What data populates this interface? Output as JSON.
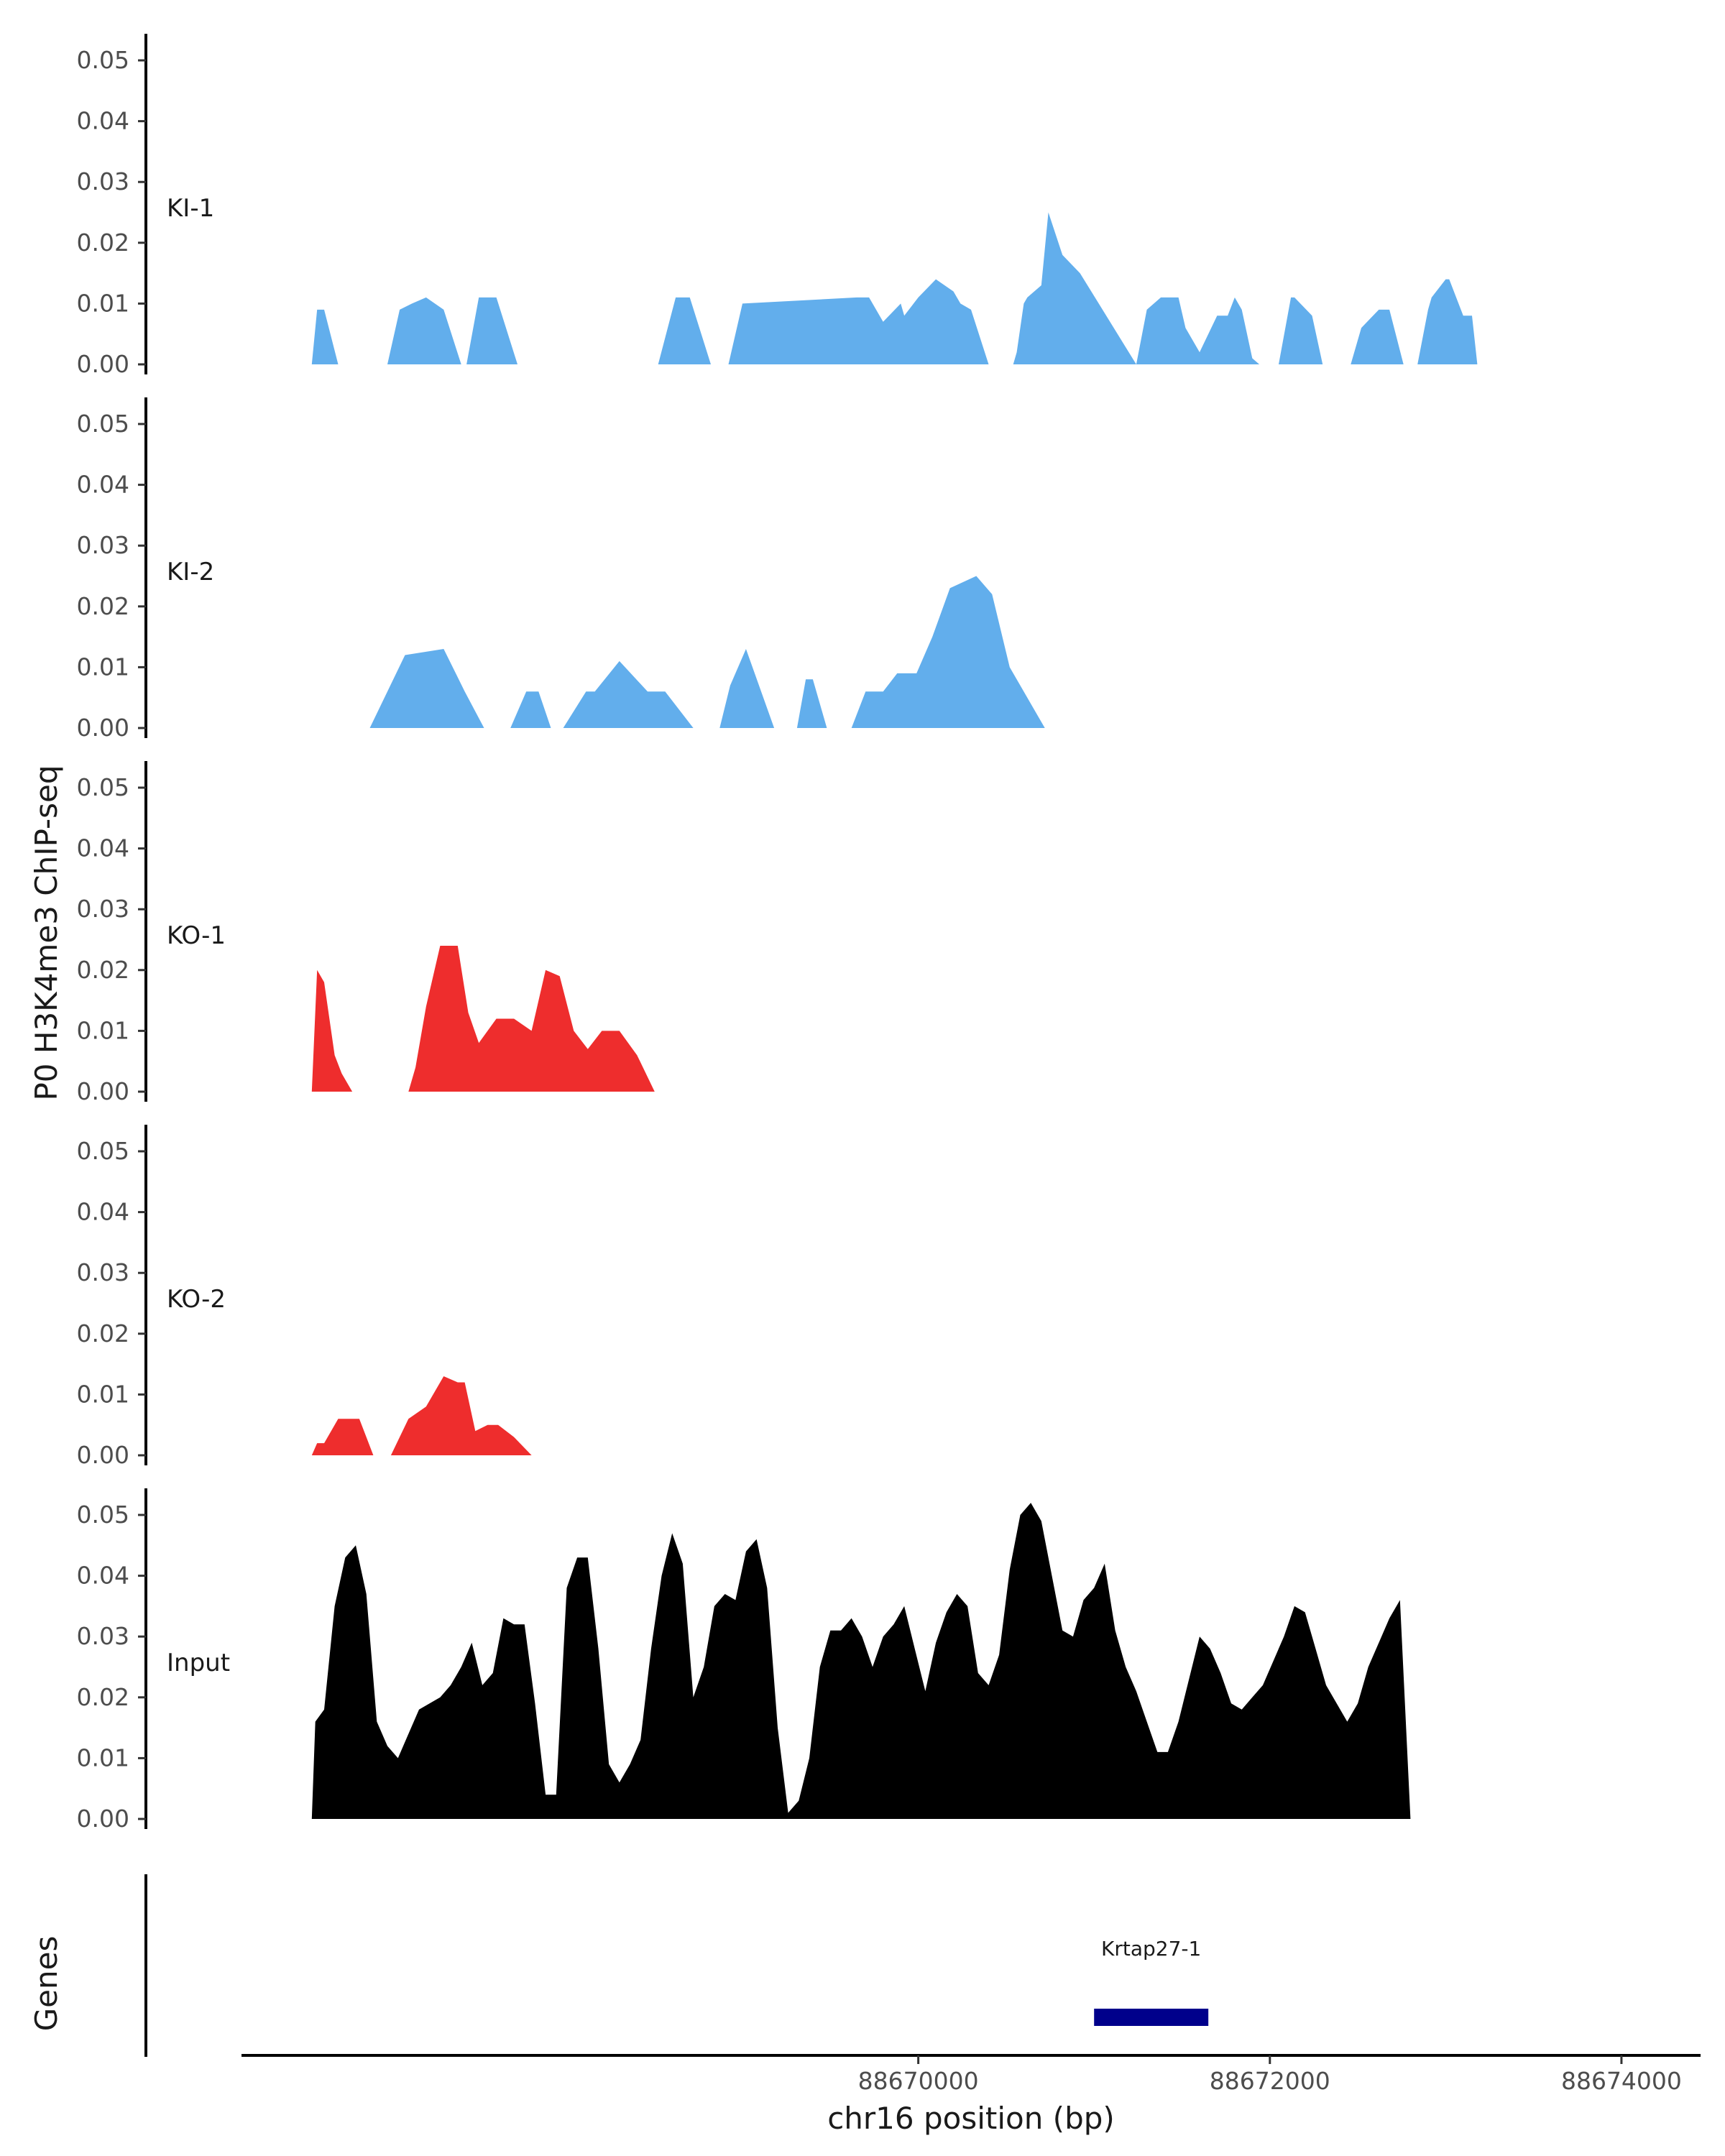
{
  "colors": {
    "KI": "#62AEEC",
    "KO": "#EE2D2D",
    "Input": "#000000",
    "gene": "#00008B"
  },
  "chart_data": {
    "type": "area",
    "title": "",
    "ylabel": "P0 H3K4me3 ChIP-seq",
    "xlabel": "chr16 position (bp)",
    "ylim": [
      0,
      0.055
    ],
    "y_ticks": [
      "0.00",
      "0.01",
      "0.02",
      "0.03",
      "0.04",
      "0.05"
    ],
    "xlim": [
      88666150,
      88674450
    ],
    "x_ticks": [
      {
        "value": 88670000,
        "label": "88670000"
      },
      {
        "value": 88672000,
        "label": "88672000"
      },
      {
        "value": 88674000,
        "label": "88674000"
      }
    ],
    "series": [
      {
        "name": "KI-1",
        "group": "KI",
        "x": [
          88666550,
          88666580,
          88666620,
          88666700,
          88666980,
          88667050,
          88667120,
          88667200,
          88667300,
          88667400,
          88667430,
          88667500,
          88667600,
          88667720,
          88667920,
          88668520,
          88668620,
          88668700,
          88668820,
          88668920,
          88669000,
          88669650,
          88669720,
          88669800,
          88669900,
          88669920,
          88670000,
          88670100,
          88670200,
          88670240,
          88670300,
          88670400,
          88670540,
          88670560,
          88670600,
          88670620,
          88670700,
          88670740,
          88670820,
          88670920,
          88671240,
          88671300,
          88671380,
          88671420,
          88671480,
          88671520,
          88671600,
          88671700,
          88671760,
          88671800,
          88671840,
          88671900,
          88671940,
          88672020,
          88672050,
          88672120,
          88672140,
          88672240,
          88672300,
          88672460,
          88672520,
          88672620,
          88672680,
          88672760,
          88672840,
          88672900,
          88672920,
          88673000,
          88673020,
          88673100,
          88673150,
          88673180,
          88673240,
          88673300
        ],
        "y": [
          0,
          0.009,
          0.009,
          0,
          0,
          0.009,
          0.01,
          0.011,
          0.009,
          0,
          0,
          0.011,
          0.011,
          0,
          0,
          0,
          0.011,
          0.011,
          0,
          0,
          0.01,
          0.011,
          0.011,
          0.007,
          0.01,
          0.008,
          0.011,
          0.014,
          0.012,
          0.01,
          0.009,
          0,
          0,
          0.002,
          0.01,
          0.011,
          0.013,
          0.025,
          0.018,
          0.015,
          0,
          0.009,
          0.011,
          0.011,
          0.011,
          0.006,
          0.002,
          0.008,
          0.008,
          0.011,
          0.009,
          0.001,
          0,
          0,
          0,
          0.011,
          0.011,
          0.008,
          0,
          0,
          0.006,
          0.009,
          0.009,
          0.0,
          0,
          0.009,
          0.011,
          0.014,
          0.014,
          0.008,
          0.008,
          0.0,
          0,
          0
        ]
      },
      {
        "name": "KI-2",
        "group": "KI",
        "x": [
          88666760,
          88666880,
          88666980,
          88667080,
          88667300,
          88667420,
          88667530,
          88667610,
          88667680,
          88667770,
          88667840,
          88667910,
          88667980,
          88668110,
          88668160,
          88668300,
          88668460,
          88668560,
          88668720,
          88668870,
          88668930,
          88669020,
          88669180,
          88669260,
          88669310,
          88669360,
          88669400,
          88669480,
          88669540,
          88669620,
          88669700,
          88669800,
          88669880,
          88669990,
          88670080,
          88670180,
          88670330,
          88670420,
          88670520,
          88670720,
          88670820,
          88670900,
          88670980,
          88671080,
          88671180,
          88671260,
          88671360,
          88671480,
          88671580,
          88671680,
          88671860,
          88671960,
          88672060,
          88672160,
          88672260,
          88672360,
          88672440,
          88672540,
          88672660,
          88672780,
          88672900,
          88673020,
          88673160,
          88673320
        ],
        "y": [
          0,
          0.0,
          0.006,
          0.012,
          0.013,
          0.006,
          0,
          0,
          0,
          0.006,
          0.006,
          0,
          0,
          0.006,
          0.006,
          0.011,
          0.006,
          0.006,
          0,
          0,
          0.007,
          0.013,
          0.0,
          0,
          0,
          0.008,
          0.008,
          0.0,
          0,
          0,
          0.006,
          0.006,
          0.009,
          0.009,
          0.015,
          0.023,
          0.025,
          0.022,
          0.01,
          0.0,
          0,
          0,
          0,
          0,
          0,
          0,
          0,
          0,
          0,
          0,
          0,
          0,
          0,
          0,
          0,
          0,
          0,
          0,
          0,
          0,
          0,
          0,
          0,
          0
        ]
      },
      {
        "name": "KO-1",
        "group": "KO",
        "x": [
          88666550,
          88666580,
          88666620,
          88666680,
          88666720,
          88666780,
          88667100,
          88667140,
          88667200,
          88667280,
          88667380,
          88667440,
          88667500,
          88667600,
          88667700,
          88667800,
          88667880,
          88667960,
          88668040,
          88668120,
          88668200,
          88668300,
          88668400,
          88668500,
          88668600,
          88668700,
          88668800,
          88668900,
          88669000,
          88669100,
          88669200,
          88669300,
          88669400,
          88669500,
          88669600,
          88669700,
          88669800,
          88669900,
          88670000,
          88670100,
          88670200,
          88670300,
          88670400,
          88670500,
          88670600,
          88670700,
          88670800,
          88670900,
          88671000,
          88671100,
          88671200,
          88671300,
          88671400,
          88671500,
          88671600,
          88671700,
          88671800,
          88671900,
          88672000,
          88672100,
          88672200,
          88672300,
          88672400,
          88672500
        ],
        "y": [
          0,
          0.02,
          0.018,
          0.006,
          0.003,
          0,
          0,
          0.004,
          0.014,
          0.024,
          0.024,
          0.013,
          0.008,
          0.012,
          0.012,
          0.01,
          0.02,
          0.019,
          0.01,
          0.007,
          0.01,
          0.01,
          0.006,
          0,
          0,
          0,
          0,
          0,
          0,
          0,
          0,
          0,
          0,
          0,
          0,
          0,
          0,
          0,
          0,
          0,
          0,
          0,
          0,
          0,
          0,
          0,
          0,
          0,
          0,
          0,
          0,
          0,
          0,
          0,
          0,
          0,
          0,
          0,
          0,
          0,
          0,
          0,
          0,
          0
        ]
      },
      {
        "name": "KO-2",
        "group": "KO",
        "x": [
          88666550,
          88666580,
          88666620,
          88666700,
          88666820,
          88666900,
          88667000,
          88667100,
          88667200,
          88667300,
          88667380,
          88667420,
          88667480,
          88667550,
          88667610,
          88667700,
          88667800,
          88667880,
          88667940,
          88668100,
          88668160,
          88668300,
          88668440,
          88668520,
          88668680,
          88668800,
          88668920,
          88669040,
          88669160,
          88669240,
          88669340,
          88669420,
          88669500,
          88669580,
          88669660,
          88669740,
          88669820,
          88669900,
          88670000,
          88670100,
          88670200,
          88670300,
          88670400,
          88670500,
          88670600,
          88670700,
          88670800,
          88670900,
          88671000,
          88671100,
          88671200,
          88671300,
          88671400,
          88671500,
          88671600,
          88671700,
          88671800,
          88671900,
          88672000,
          88672100,
          88672200,
          88672300,
          88672400,
          88672500
        ],
        "y": [
          0,
          0.002,
          0.002,
          0.006,
          0.006,
          0,
          0,
          0.006,
          0.008,
          0.013,
          0.012,
          0.012,
          0.004,
          0.005,
          0.005,
          0.003,
          0,
          0,
          0,
          0,
          0,
          0,
          0,
          0,
          0,
          0,
          0,
          0,
          0,
          0,
          0,
          0,
          0,
          0,
          0,
          0,
          0,
          0,
          0,
          0,
          0,
          0,
          0,
          0,
          0,
          0,
          0,
          0,
          0,
          0,
          0,
          0,
          0,
          0,
          0,
          0,
          0,
          0,
          0,
          0,
          0,
          0,
          0,
          0
        ]
      },
      {
        "name": "Input",
        "group": "Input",
        "x": [
          88666550,
          88666570,
          88666620,
          88666680,
          88666740,
          88666800,
          88666860,
          88666920,
          88666980,
          88667040,
          88667100,
          88667160,
          88667220,
          88667280,
          88667340,
          88667400,
          88667460,
          88667520,
          88667580,
          88667640,
          88667700,
          88667760,
          88667820,
          88667880,
          88667940,
          88668000,
          88668060,
          88668120,
          88668180,
          88668240,
          88668300,
          88668360,
          88668420,
          88668480,
          88668540,
          88668600,
          88668660,
          88668720,
          88668780,
          88668840,
          88668900,
          88668960,
          88669020,
          88669080,
          88669140,
          88669200,
          88669260,
          88669320,
          88669380,
          88669440,
          88669500,
          88669560,
          88669620,
          88669680,
          88669740,
          88669800,
          88669860,
          88669920,
          88669980,
          88670040,
          88670100,
          88670160,
          88670220,
          88670280,
          88670340,
          88670400,
          88670460,
          88670520,
          88670580,
          88670640,
          88670700,
          88670760,
          88670820,
          88670880,
          88670940,
          88671000,
          88671060,
          88671120,
          88671180,
          88671240,
          88671300,
          88671360,
          88671420,
          88671480,
          88671540,
          88671600,
          88671660,
          88671720,
          88671780,
          88671840,
          88671900,
          88671960,
          88672020,
          88672080,
          88672140,
          88672200,
          88672260,
          88672320,
          88672380,
          88672440,
          88672500,
          88672560,
          88672620,
          88672680,
          88672740,
          88672800,
          88672860,
          88672920,
          88672980,
          88673040,
          88673100,
          88673160,
          88673220,
          88673280,
          88673340,
          88673400,
          88673460,
          88673520,
          88673580,
          88673640,
          88673700,
          88673760,
          88673820,
          88673880,
          88673940,
          88674000,
          88674060,
          88674110
        ],
        "y": [
          0,
          0.016,
          0.018,
          0.035,
          0.043,
          0.045,
          0.037,
          0.016,
          0.012,
          0.01,
          0.014,
          0.018,
          0.019,
          0.02,
          0.022,
          0.025,
          0.029,
          0.022,
          0.024,
          0.033,
          0.032,
          0.032,
          0.019,
          0.004,
          0.004,
          0.038,
          0.043,
          0.043,
          0.028,
          0.009,
          0.006,
          0.009,
          0.013,
          0.028,
          0.04,
          0.047,
          0.042,
          0.02,
          0.025,
          0.035,
          0.037,
          0.036,
          0.044,
          0.046,
          0.038,
          0.015,
          0.001,
          0.003,
          0.01,
          0.025,
          0.031,
          0.031,
          0.033,
          0.03,
          0.025,
          0.03,
          0.032,
          0.035,
          0.028,
          0.021,
          0.029,
          0.034,
          0.037,
          0.035,
          0.024,
          0.022,
          0.027,
          0.041,
          0.05,
          0.052,
          0.049,
          0.04,
          0.031,
          0.03,
          0.036,
          0.038,
          0.042,
          0.031,
          0.025,
          0.021,
          0.016,
          0.011,
          0.011,
          0.016,
          0.023,
          0.03,
          0.028,
          0.024,
          0.019,
          0.018,
          0.02,
          0.022,
          0.026,
          0.03,
          0.035,
          0.034,
          0.028,
          0.022,
          0.019,
          0.016,
          0.019,
          0.025,
          0.029,
          0.033,
          0.036,
          0.0,
          0,
          0,
          0,
          0,
          0,
          0,
          0,
          0,
          0,
          0,
          0,
          0,
          0,
          0,
          0,
          0,
          0,
          0,
          0,
          0,
          0,
          0
        ]
      }
    ],
    "genes": {
      "title": "Genes",
      "items": [
        {
          "name": "Krtap27-1",
          "start": 88671000,
          "end": 88671650
        }
      ]
    }
  }
}
